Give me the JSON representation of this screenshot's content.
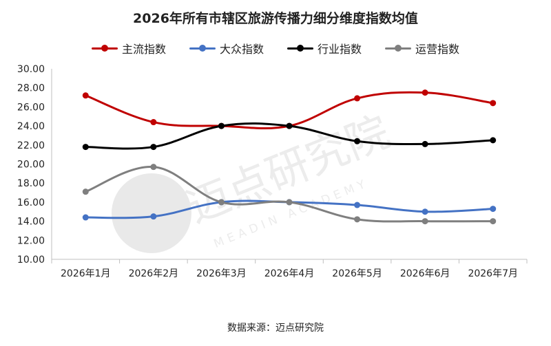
{
  "chart_data": {
    "type": "line",
    "title": "2026年所有市辖区旅游传播力细分维度指数均值",
    "categories": [
      "2026年1月",
      "2026年2月",
      "2026年3月",
      "2026年4月",
      "2026年5月",
      "2026年6月",
      "2026年7月"
    ],
    "series": [
      {
        "name": "主流指数",
        "color": "#C00000",
        "values": [
          27.2,
          24.4,
          24.0,
          24.0,
          26.9,
          27.5,
          26.4
        ]
      },
      {
        "name": "大众指数",
        "color": "#4472C4",
        "values": [
          14.4,
          14.5,
          16.0,
          16.0,
          15.7,
          15.0,
          15.3
        ]
      },
      {
        "name": "行业指数",
        "color": "#000000",
        "values": [
          21.8,
          21.8,
          24.0,
          24.0,
          22.4,
          22.1,
          22.5
        ]
      },
      {
        "name": "运营指数",
        "color": "#7F7F7F",
        "values": [
          17.1,
          19.7,
          16.0,
          16.0,
          14.2,
          14.0,
          14.0
        ]
      }
    ],
    "ylim": [
      10,
      30
    ],
    "yticks": [
      "10.00",
      "12.00",
      "14.00",
      "16.00",
      "18.00",
      "20.00",
      "22.00",
      "24.00",
      "26.00",
      "28.00",
      "30.00"
    ],
    "grid": false,
    "legend": "top-center"
  },
  "source_label": "数据来源：迈点研究院",
  "watermark": {
    "cn": "迈点研究院",
    "en": "MEADIN ACADEMY"
  }
}
